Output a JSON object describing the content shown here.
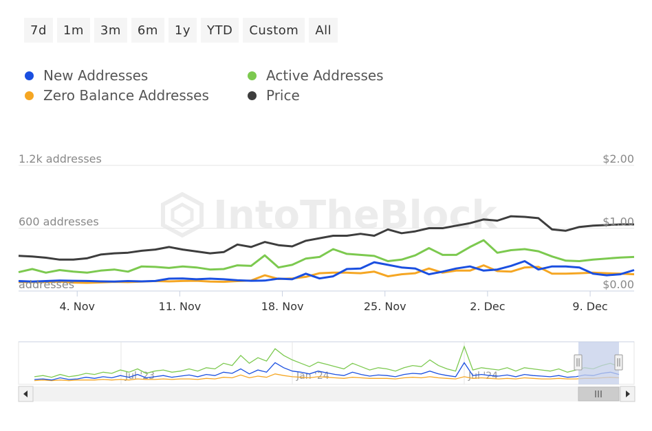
{
  "range_buttons": [
    "7d",
    "1m",
    "3m",
    "6m",
    "1y",
    "YTD",
    "Custom",
    "All"
  ],
  "legend": [
    {
      "label": "New Addresses",
      "color": "#1a4fe0"
    },
    {
      "label": "Active Addresses",
      "color": "#7cc94f"
    },
    {
      "label": "Zero Balance Addresses",
      "color": "#f5a623"
    },
    {
      "label": "Price",
      "color": "#3d3d3d"
    }
  ],
  "watermark": "IntoTheBlock",
  "chart_data": {
    "type": "line",
    "x_start": "2023-10-31",
    "x_end": "2023-12-12",
    "x_ticks": [
      "4. Nov",
      "11. Nov",
      "18. Nov",
      "25. Nov",
      "2. Dec",
      "9. Dec"
    ],
    "y_left": {
      "ticks": [
        "1.2k addresses",
        "600 addresses",
        "addresses"
      ],
      "range": [
        0,
        1200
      ]
    },
    "y_right": {
      "ticks": [
        "$2.00",
        "$1.00",
        "$0.00"
      ],
      "range": [
        0,
        2
      ]
    },
    "series": [
      {
        "name": "New Addresses",
        "axis": "left",
        "color": "#1a4fe0",
        "values": [
          95,
          90,
          95,
          100,
          98,
          96,
          92,
          90,
          95,
          92,
          96,
          118,
          120,
          112,
          118,
          112,
          102,
          98,
          100,
          118,
          112,
          165,
          120,
          140,
          210,
          215,
          275,
          250,
          225,
          215,
          160,
          185,
          215,
          235,
          195,
          205,
          240,
          285,
          205,
          235,
          235,
          225,
          165,
          150,
          160,
          200
        ]
      },
      {
        "name": "Active Addresses",
        "axis": "left",
        "color": "#7cc94f",
        "values": [
          180,
          210,
          175,
          200,
          185,
          175,
          195,
          205,
          185,
          235,
          230,
          220,
          235,
          225,
          205,
          210,
          245,
          240,
          340,
          225,
          250,
          310,
          325,
          400,
          355,
          345,
          335,
          285,
          300,
          340,
          410,
          345,
          345,
          420,
          485,
          365,
          390,
          400,
          380,
          330,
          290,
          285,
          300,
          310,
          320,
          325
        ]
      },
      {
        "name": "Zero Balance Addresses",
        "axis": "left",
        "color": "#f5a623",
        "values": [
          85,
          85,
          85,
          90,
          80,
          78,
          82,
          88,
          85,
          90,
          95,
          92,
          96,
          98,
          90,
          88,
          95,
          100,
          150,
          115,
          120,
          135,
          170,
          175,
          175,
          170,
          185,
          140,
          160,
          170,
          215,
          175,
          195,
          195,
          245,
          190,
          185,
          225,
          230,
          165,
          165,
          170,
          175,
          170,
          165,
          160
        ]
      },
      {
        "name": "Price",
        "axis": "right",
        "color": "#3d3d3d",
        "values": [
          0.56,
          0.55,
          0.53,
          0.5,
          0.5,
          0.52,
          0.58,
          0.6,
          0.61,
          0.64,
          0.66,
          0.7,
          0.66,
          0.63,
          0.6,
          0.62,
          0.74,
          0.7,
          0.78,
          0.73,
          0.71,
          0.8,
          0.84,
          0.88,
          0.88,
          0.91,
          0.88,
          0.98,
          0.92,
          0.95,
          1.0,
          1.0,
          1.04,
          1.08,
          1.14,
          1.12,
          1.19,
          1.18,
          1.16,
          0.98,
          0.96,
          1.02,
          1.04,
          1.05,
          1.06,
          1.06
        ]
      }
    ],
    "navigator": {
      "labels": [
        "Jul '23",
        "Jan '24",
        "Jul '24"
      ],
      "new_addresses": [
        5,
        6,
        4,
        8,
        5,
        6,
        9,
        7,
        10,
        8,
        12,
        9,
        14,
        8,
        10,
        12,
        9,
        11,
        13,
        10,
        14,
        12,
        18,
        16,
        24,
        15,
        22,
        18,
        35,
        26,
        20,
        18,
        15,
        20,
        17,
        14,
        12,
        18,
        14,
        11,
        13,
        12,
        10,
        14,
        16,
        15,
        20,
        15,
        12,
        10,
        35,
        12,
        14,
        12,
        11,
        13,
        10,
        14,
        12,
        11,
        10,
        12,
        9,
        10,
        13,
        12,
        16,
        18,
        14
      ],
      "active_addresses": [
        10,
        12,
        9,
        14,
        10,
        12,
        16,
        14,
        18,
        16,
        22,
        18,
        24,
        16,
        20,
        22,
        18,
        20,
        24,
        20,
        26,
        24,
        34,
        30,
        48,
        34,
        44,
        38,
        60,
        48,
        40,
        34,
        28,
        36,
        32,
        28,
        24,
        34,
        28,
        22,
        26,
        24,
        20,
        26,
        30,
        28,
        40,
        30,
        24,
        20,
        64,
        22,
        26,
        24,
        22,
        26,
        20,
        26,
        24,
        22,
        20,
        24,
        18,
        22,
        26,
        24,
        30,
        34,
        28
      ],
      "zero_balance": [
        3,
        4,
        3,
        4,
        3,
        4,
        4,
        4,
        5,
        4,
        5,
        4,
        6,
        5,
        5,
        6,
        5,
        6,
        6,
        5,
        7,
        6,
        9,
        8,
        13,
        8,
        11,
        9,
        15,
        12,
        10,
        9,
        8,
        10,
        9,
        8,
        7,
        9,
        8,
        7,
        7,
        7,
        6,
        8,
        9,
        8,
        10,
        8,
        7,
        6,
        10,
        7,
        8,
        7,
        6,
        7,
        6,
        8,
        7,
        6,
        6,
        7,
        6,
        6,
        7,
        7,
        8,
        9,
        8
      ]
    }
  }
}
